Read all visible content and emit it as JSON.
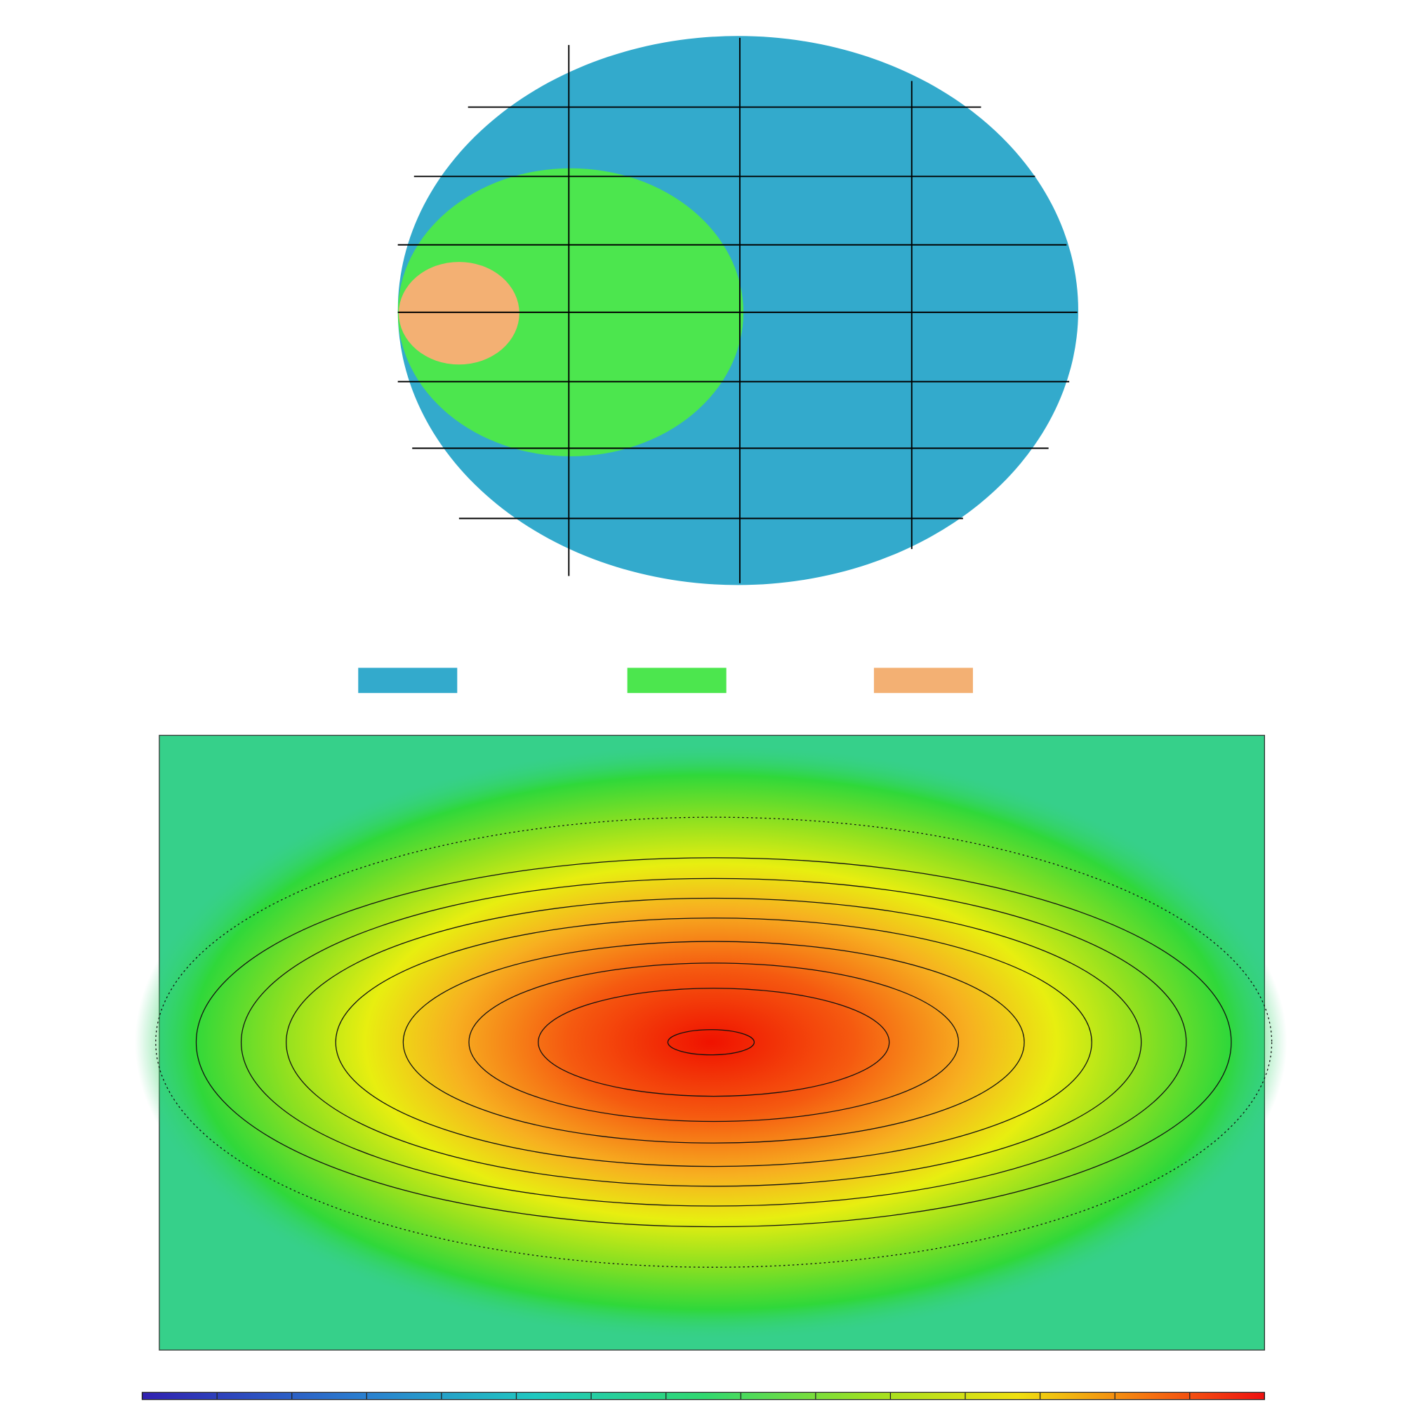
{
  "legend": [
    {
      "color": "#33aacc"
    },
    {
      "color": "#4ce64e"
    },
    {
      "color": "#f3b073"
    }
  ]
}
